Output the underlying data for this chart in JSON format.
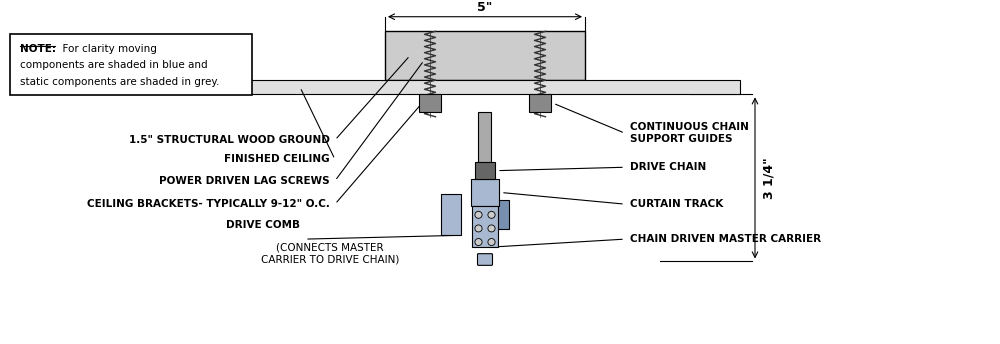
{
  "background_color": "#ffffff",
  "fig_width": 10.0,
  "fig_height": 3.44,
  "dpi": 100,
  "colors": {
    "grey_dark": "#888888",
    "grey_medium": "#aaaaaa",
    "grey_light": "#cccccc",
    "grey_lighter": "#e0e0e0",
    "blue_light": "#a8b8d0",
    "blue_medium": "#7890b0",
    "black": "#000000",
    "white": "#ffffff",
    "screw_dark": "#333333",
    "chain_grey": "#666666"
  },
  "labels": {
    "structural_wood": "1.5\" STRUCTURAL WOOD GROUND",
    "finished_ceiling": "FINISHED CEILING",
    "lag_screws": "POWER DRIVEN LAG SCREWS",
    "ceiling_brackets": "CEILING BRACKETS- TYPICALLY 9-12\" O.C.",
    "drive_comb_bold": "DRIVE COMB",
    "drive_comb_normal": "(CONNECTS MASTER\nCARRIER TO DRIVE CHAIN)",
    "chain_support": "CONTINUOUS CHAIN\nSUPPORT GUIDES",
    "drive_chain": "DRIVE CHAIN",
    "curtain_track": "CURTAIN TRACK",
    "master_carrier": "CHAIN DRIVEN MASTER CARRIER",
    "dim_5in": "5\"",
    "dim_3in": "3 1/4\""
  },
  "note_lines": [
    "  For clarity moving",
    "components are shaded in blue and",
    "static components are shaded in grey."
  ]
}
